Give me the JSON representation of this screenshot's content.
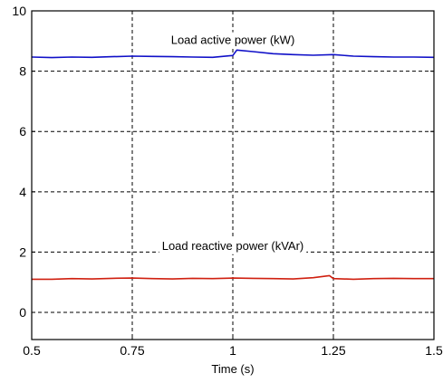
{
  "chart_data": {
    "type": "line",
    "title": "",
    "xlabel": "Time (s)",
    "ylabel": "",
    "xlim": [
      0.5,
      1.5
    ],
    "ylim": [
      -0.9,
      10
    ],
    "xticks": [
      0.5,
      0.75,
      1,
      1.25,
      1.5
    ],
    "xtick_labels": [
      "0.5",
      "0.75",
      "1",
      "1.25",
      "1.5"
    ],
    "yticks": [
      0,
      2,
      4,
      6,
      8,
      10
    ],
    "ytick_labels": [
      "0",
      "2",
      "4",
      "6",
      "8",
      "10"
    ],
    "grid": true,
    "annotations": [
      {
        "text": "Load active power (kW)",
        "x": 1.0,
        "y": 8.9
      },
      {
        "text": "Load reactive power (kVAr)",
        "x": 1.0,
        "y": 2.08
      }
    ],
    "series": [
      {
        "color": "#1010c8",
        "x": [
          0.5,
          0.55,
          0.6,
          0.65,
          0.7,
          0.75,
          0.8,
          0.85,
          0.9,
          0.95,
          1.0,
          1.01,
          1.05,
          1.1,
          1.15,
          1.2,
          1.25,
          1.3,
          1.35,
          1.4,
          1.45,
          1.5
        ],
        "values": [
          8.47,
          8.45,
          8.47,
          8.46,
          8.48,
          8.5,
          8.49,
          8.48,
          8.47,
          8.46,
          8.52,
          8.7,
          8.65,
          8.58,
          8.55,
          8.53,
          8.55,
          8.5,
          8.48,
          8.47,
          8.47,
          8.46
        ]
      },
      {
        "color": "#d02010",
        "x": [
          0.5,
          0.55,
          0.6,
          0.65,
          0.7,
          0.75,
          0.8,
          0.85,
          0.9,
          0.95,
          1.0,
          1.05,
          1.1,
          1.15,
          1.2,
          1.24,
          1.25,
          1.3,
          1.35,
          1.4,
          1.45,
          1.5
        ],
        "values": [
          1.1,
          1.1,
          1.12,
          1.11,
          1.13,
          1.14,
          1.12,
          1.11,
          1.13,
          1.12,
          1.14,
          1.13,
          1.12,
          1.11,
          1.15,
          1.22,
          1.12,
          1.1,
          1.12,
          1.13,
          1.12,
          1.12
        ]
      }
    ]
  }
}
